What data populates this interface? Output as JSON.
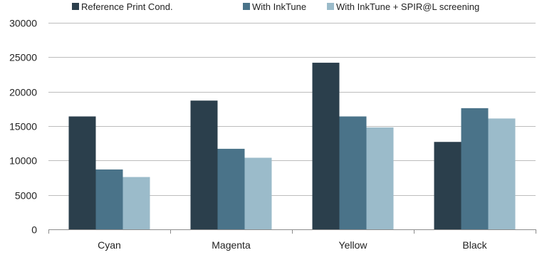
{
  "chart_data": {
    "type": "bar",
    "categories": [
      "Cyan",
      "Magenta",
      "Yellow",
      "Black"
    ],
    "series": [
      {
        "name": "Reference Print Cond.",
        "color": "#2b3f4c",
        "values": [
          16400,
          18700,
          24200,
          12700
        ]
      },
      {
        "name": "With InkTune",
        "color": "#4a7389",
        "values": [
          8700,
          11700,
          16400,
          17600
        ]
      },
      {
        "name": "With InkTune + SPIR@L screening",
        "color": "#9bbbca",
        "values": [
          7600,
          10400,
          14800,
          16100
        ]
      }
    ],
    "ylim": [
      0,
      30000
    ],
    "yticks": [
      0,
      5000,
      10000,
      15000,
      20000,
      25000,
      30000
    ],
    "grid": true,
    "legend_position": "top"
  }
}
